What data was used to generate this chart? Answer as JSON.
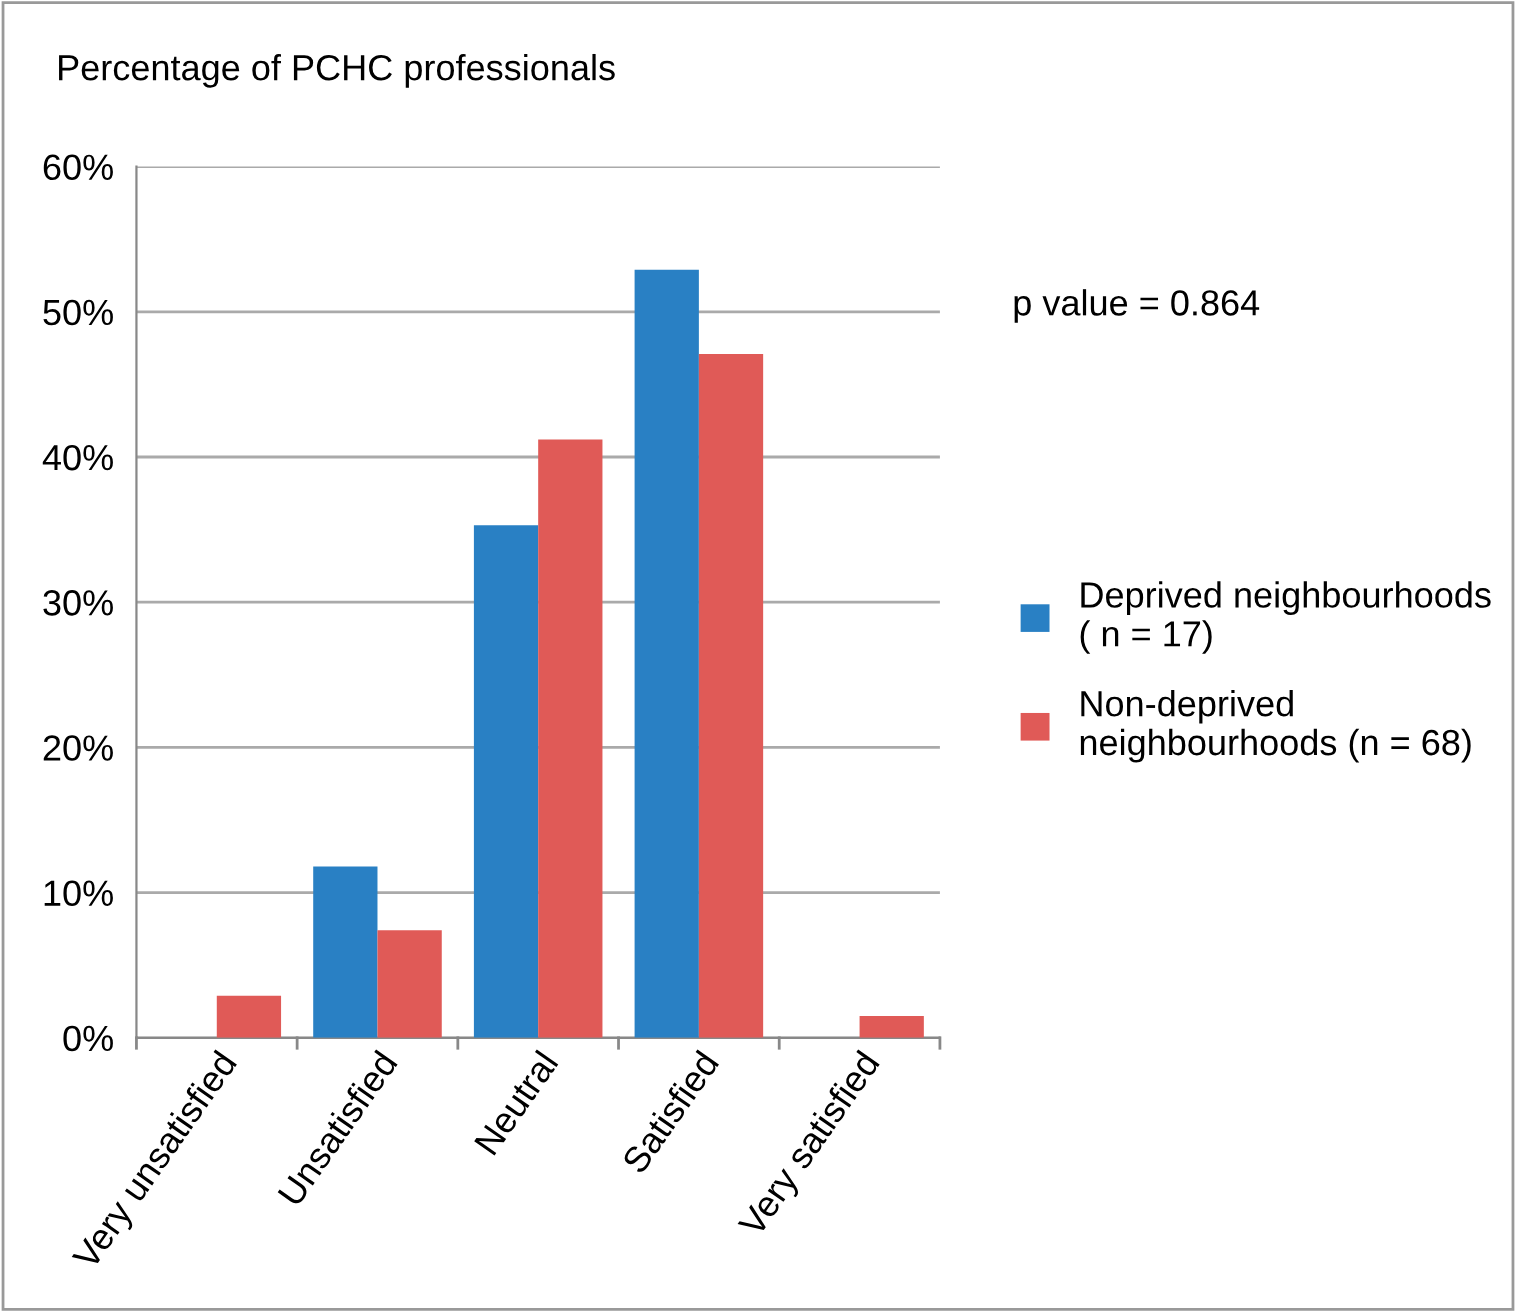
{
  "chart_data": {
    "type": "bar",
    "ylabel": "Percentage of PCHC professionals",
    "categories": [
      "Very unsatisfied",
      "Unsatisfied",
      "Neutral",
      "Satisfied",
      "Very satisfied"
    ],
    "series": [
      {
        "name": "Deprived neighbourhoods\n( n = 17)",
        "color": "#2980c4",
        "values": [
          0,
          11.8,
          35.3,
          52.9,
          0
        ]
      },
      {
        "name": "Non-deprived\nneighbourhoods (n = 68)",
        "color": "#e05a57",
        "values": [
          2.9,
          7.4,
          41.2,
          47.1,
          1.5
        ]
      }
    ],
    "ylim": [
      0,
      60
    ],
    "yticks": [
      {
        "value": 0,
        "label": "0%"
      },
      {
        "value": 10,
        "label": "10%"
      },
      {
        "value": 20,
        "label": "20%"
      },
      {
        "value": 30,
        "label": "30%"
      },
      {
        "value": 40,
        "label": "40%"
      },
      {
        "value": 50,
        "label": "50%"
      },
      {
        "value": 60,
        "label": "60%"
      }
    ],
    "grid": "y",
    "legend": "right",
    "annotations": [
      "p value = 0.864"
    ]
  }
}
